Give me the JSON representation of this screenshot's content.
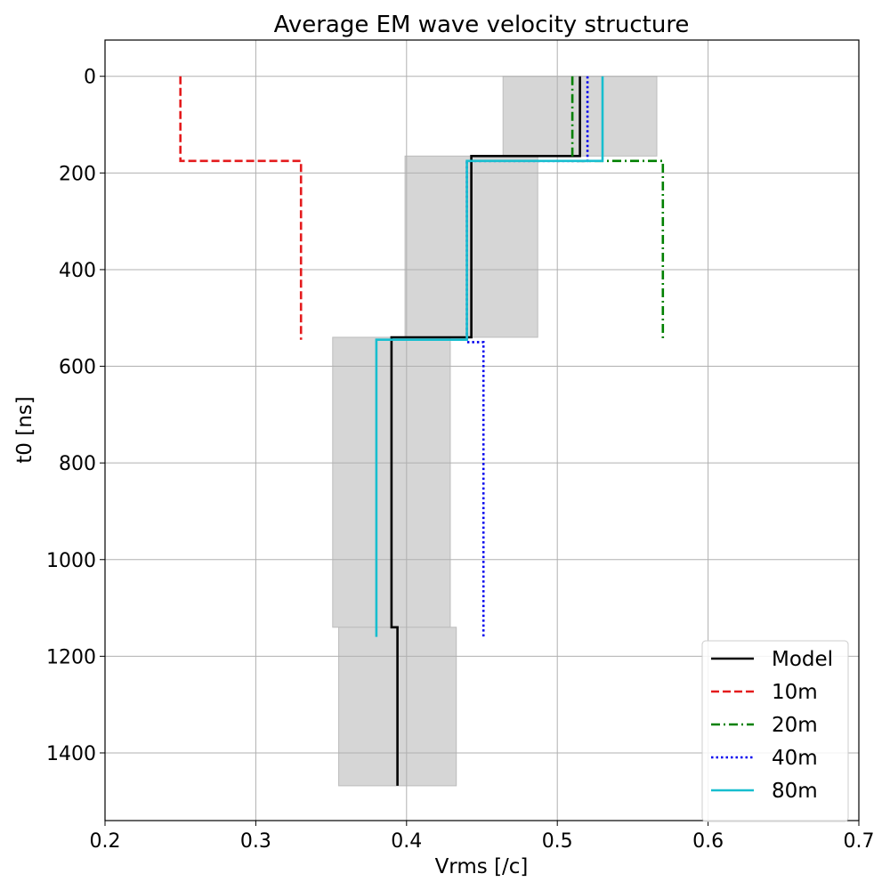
{
  "chart_data": {
    "type": "line",
    "title": "Average EM wave velocity structure",
    "xlabel": "Vrms [/c]",
    "ylabel": "t0 [ns]",
    "xlim": [
      0.2,
      0.7
    ],
    "ylim": [
      1540,
      -75
    ],
    "y_inverted": true,
    "grid": true,
    "legend_position": "lower-right",
    "x_ticks": [
      "0.2",
      "0.3",
      "0.4",
      "0.5",
      "0.6",
      "0.7"
    ],
    "y_ticks": [
      "0",
      "200",
      "400",
      "600",
      "800",
      "1000",
      "1200",
      "1400"
    ],
    "uncertainty_boxes": [
      {
        "x0": 0.464,
        "x1": 0.566,
        "y0": 0,
        "y1": 165
      },
      {
        "x0": 0.399,
        "x1": 0.487,
        "y0": 165,
        "y1": 540
      },
      {
        "x0": 0.351,
        "x1": 0.429,
        "y0": 540,
        "y1": 1140
      },
      {
        "x0": 0.355,
        "x1": 0.433,
        "y0": 1140,
        "y1": 1468
      }
    ],
    "series": [
      {
        "name": "Model",
        "color": "#000000",
        "dash": "solid",
        "points": [
          [
            0.515,
            0
          ],
          [
            0.515,
            165
          ],
          [
            0.443,
            165
          ],
          [
            0.443,
            540
          ],
          [
            0.39,
            540
          ],
          [
            0.39,
            1140
          ],
          [
            0.394,
            1140
          ],
          [
            0.394,
            1468
          ]
        ]
      },
      {
        "name": "10m",
        "color": "#e41a1c",
        "dash": "dashed",
        "points": [
          [
            0.25,
            0
          ],
          [
            0.25,
            175
          ],
          [
            0.33,
            175
          ],
          [
            0.33,
            545
          ]
        ]
      },
      {
        "name": "20m",
        "color": "#008000",
        "dash": "dashdot",
        "points": [
          [
            0.51,
            0
          ],
          [
            0.51,
            175
          ],
          [
            0.57,
            175
          ],
          [
            0.57,
            545
          ]
        ]
      },
      {
        "name": "40m",
        "color": "#0000ee",
        "dash": "dotted",
        "points": [
          [
            0.52,
            0
          ],
          [
            0.52,
            175
          ],
          [
            0.44,
            175
          ],
          [
            0.44,
            550
          ],
          [
            0.451,
            550
          ],
          [
            0.451,
            1160
          ]
        ]
      },
      {
        "name": "80m",
        "color": "#17becf",
        "dash": "solid",
        "points": [
          [
            0.53,
            0
          ],
          [
            0.53,
            175
          ],
          [
            0.44,
            175
          ],
          [
            0.44,
            545
          ],
          [
            0.38,
            545
          ],
          [
            0.38,
            1160
          ]
        ]
      }
    ]
  }
}
